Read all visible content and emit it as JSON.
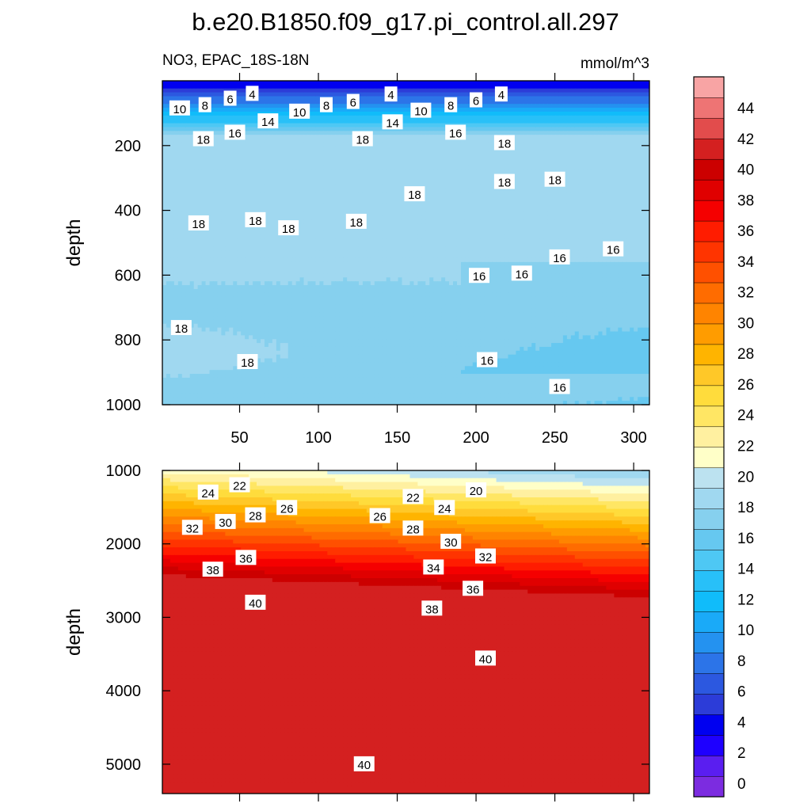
{
  "title": "b.e20.B1850.f09_g17.pi_control.all.297",
  "left_subtitle": "NO3, EPAC_18S-18N",
  "right_subtitle": "mmol/m^3",
  "colors": {
    "levels": [
      0,
      2,
      4,
      6,
      8,
      10,
      12,
      14,
      16,
      18,
      20,
      22,
      24,
      26,
      28,
      30,
      32,
      34,
      36,
      38,
      40,
      42,
      44
    ],
    "fills": [
      "#7c2ce0",
      "#5a1ef0",
      "#1e00ff",
      "#0000f0",
      "#2c3cd8",
      "#2c58e0",
      "#2c74e8",
      "#2492f0",
      "#1aaaf8",
      "#10bcfa",
      "#28c0f8",
      "#4ec8f4",
      "#66c8f0",
      "#86d0ee",
      "#a0d8f0",
      "#bce2f0",
      "#ffffc8",
      "#fff0a0",
      "#ffe664",
      "#ffdc3c",
      "#ffc828",
      "#ffb400",
      "#ff9c00",
      "#ff8400",
      "#ff6c00",
      "#ff5000",
      "#ff3400",
      "#ff1c00",
      "#f50000",
      "#e00000",
      "#cc0000",
      "#d42020",
      "#e24c4c",
      "#ee7474",
      "#f8a4a4"
    ]
  },
  "chart_data": [
    {
      "type": "contour",
      "panel": "upper",
      "ylabel": "depth",
      "ylim": [
        0,
        1000
      ],
      "y_reversed": true,
      "xlim": [
        1,
        310
      ],
      "xticks": [
        50,
        100,
        150,
        200,
        250,
        300
      ],
      "yticks": [
        200,
        400,
        600,
        800,
        1000
      ],
      "contour_labels": [
        {
          "v": "10",
          "x": 12,
          "y": 85
        },
        {
          "v": "8",
          "x": 28,
          "y": 75
        },
        {
          "v": "6",
          "x": 44,
          "y": 55
        },
        {
          "v": "4",
          "x": 58,
          "y": 40
        },
        {
          "v": "10",
          "x": 88,
          "y": 95
        },
        {
          "v": "8",
          "x": 105,
          "y": 75
        },
        {
          "v": "6",
          "x": 122,
          "y": 65
        },
        {
          "v": "4",
          "x": 146,
          "y": 42
        },
        {
          "v": "10",
          "x": 165,
          "y": 92
        },
        {
          "v": "8",
          "x": 184,
          "y": 75
        },
        {
          "v": "6",
          "x": 200,
          "y": 60
        },
        {
          "v": "4",
          "x": 216,
          "y": 42
        },
        {
          "v": "14",
          "x": 68,
          "y": 125
        },
        {
          "v": "14",
          "x": 147,
          "y": 128
        },
        {
          "v": "16",
          "x": 47,
          "y": 160
        },
        {
          "v": "16",
          "x": 187,
          "y": 160
        },
        {
          "v": "18",
          "x": 27,
          "y": 180
        },
        {
          "v": "18",
          "x": 128,
          "y": 180
        },
        {
          "v": "18",
          "x": 218,
          "y": 192
        },
        {
          "v": "18",
          "x": 218,
          "y": 312
        },
        {
          "v": "18",
          "x": 250,
          "y": 305
        },
        {
          "v": "18",
          "x": 161,
          "y": 350
        },
        {
          "v": "18",
          "x": 24,
          "y": 440
        },
        {
          "v": "18",
          "x": 60,
          "y": 430
        },
        {
          "v": "18",
          "x": 81,
          "y": 455
        },
        {
          "v": "18",
          "x": 124,
          "y": 435
        },
        {
          "v": "16",
          "x": 202,
          "y": 602
        },
        {
          "v": "16",
          "x": 229,
          "y": 595
        },
        {
          "v": "16",
          "x": 253,
          "y": 545
        },
        {
          "v": "16",
          "x": 287,
          "y": 520
        },
        {
          "v": "18",
          "x": 13,
          "y": 763
        },
        {
          "v": "18",
          "x": 55,
          "y": 868
        },
        {
          "v": "16",
          "x": 207,
          "y": 862
        },
        {
          "v": "16",
          "x": 253,
          "y": 945
        }
      ]
    },
    {
      "type": "contour",
      "panel": "lower",
      "ylabel": "depth",
      "ylim": [
        1000,
        5400
      ],
      "y_reversed": true,
      "xlim": [
        1,
        310
      ],
      "yticks": [
        1000,
        2000,
        3000,
        4000,
        5000
      ],
      "contour_labels": [
        {
          "v": "22",
          "x": 50,
          "y": 1200
        },
        {
          "v": "24",
          "x": 30,
          "y": 1300
        },
        {
          "v": "26",
          "x": 80,
          "y": 1510
        },
        {
          "v": "28",
          "x": 60,
          "y": 1610
        },
        {
          "v": "30",
          "x": 41,
          "y": 1700
        },
        {
          "v": "32",
          "x": 20,
          "y": 1780
        },
        {
          "v": "36",
          "x": 54,
          "y": 2190
        },
        {
          "v": "38",
          "x": 33,
          "y": 2350
        },
        {
          "v": "40",
          "x": 60,
          "y": 2800
        },
        {
          "v": "20",
          "x": 200,
          "y": 1270
        },
        {
          "v": "22",
          "x": 160,
          "y": 1360
        },
        {
          "v": "24",
          "x": 180,
          "y": 1510
        },
        {
          "v": "26",
          "x": 139,
          "y": 1620
        },
        {
          "v": "28",
          "x": 160,
          "y": 1790
        },
        {
          "v": "30",
          "x": 184,
          "y": 1970
        },
        {
          "v": "32",
          "x": 206,
          "y": 2170
        },
        {
          "v": "34",
          "x": 173,
          "y": 2320
        },
        {
          "v": "36",
          "x": 198,
          "y": 2610
        },
        {
          "v": "38",
          "x": 172,
          "y": 2880
        },
        {
          "v": "40",
          "x": 206,
          "y": 3560
        },
        {
          "v": "40",
          "x": 129,
          "y": 5000
        }
      ]
    },
    {
      "type": "colorbar",
      "labels": [
        "0",
        "2",
        "4",
        "6",
        "8",
        "10",
        "12",
        "14",
        "16",
        "18",
        "20",
        "22",
        "24",
        "26",
        "28",
        "30",
        "32",
        "34",
        "36",
        "38",
        "40",
        "42",
        "44"
      ]
    }
  ]
}
